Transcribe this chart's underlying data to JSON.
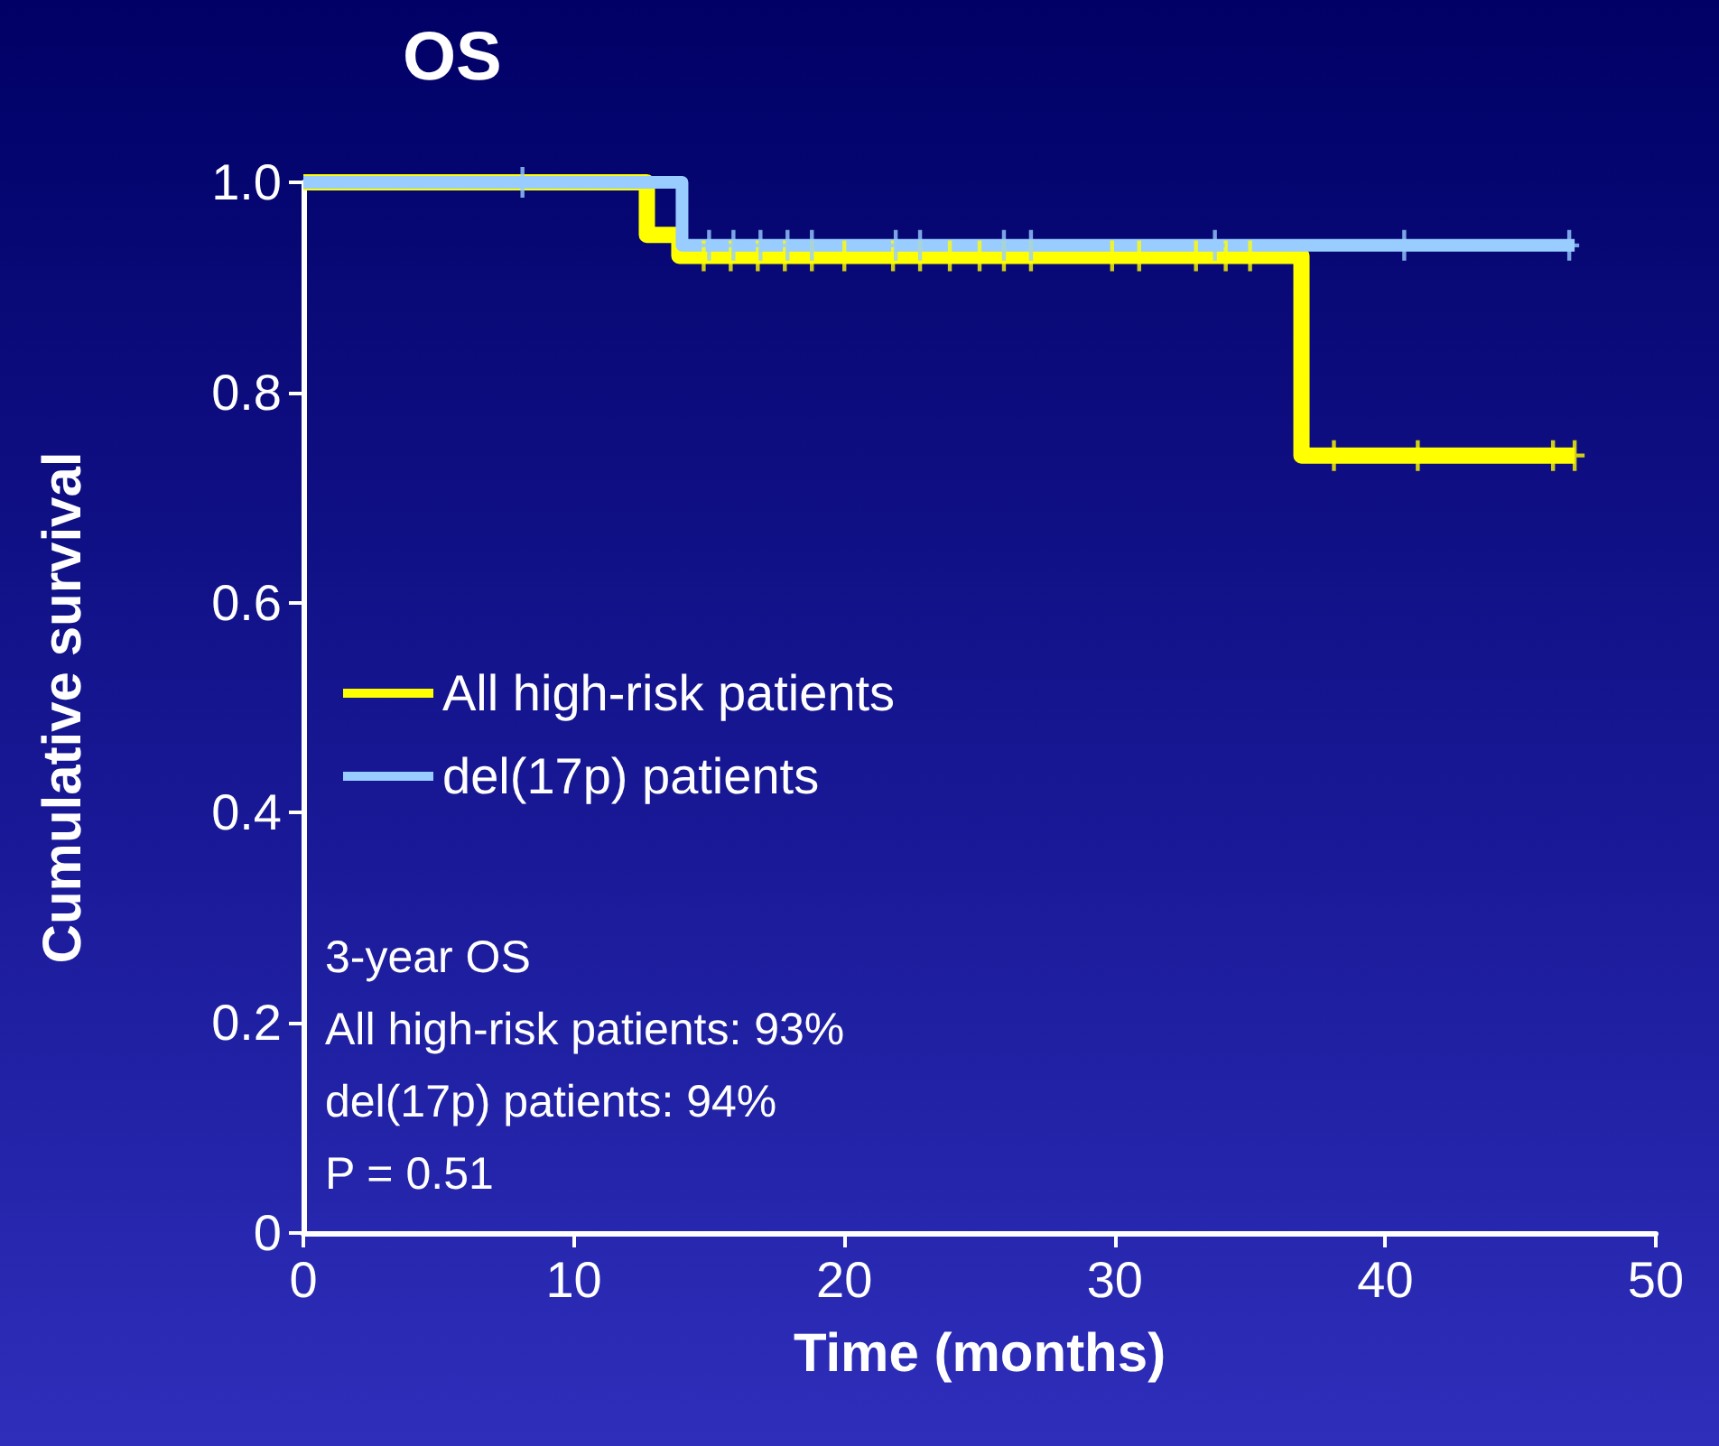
{
  "chart_data": {
    "type": "step",
    "title": "OS",
    "xlabel": "Time (months)",
    "ylabel": "Cumulative survival",
    "xlim": [
      0,
      50
    ],
    "xticks": [
      0,
      10,
      20,
      30,
      40,
      50
    ],
    "ylim": [
      0,
      1
    ],
    "yticks": [
      0,
      0.2,
      0.4,
      0.6,
      0.8,
      {
        "value": 1,
        "label": "1.0"
      }
    ],
    "series": [
      {
        "name": "All high-risk patients",
        "color": "#ffff00",
        "x": [
          0,
          12.7,
          13.9,
          36.9,
          47
        ],
        "values": [
          1,
          0.95,
          0.93,
          0.74,
          0.74
        ]
      },
      {
        "name": "del(17p) patients",
        "color": "#99ccff",
        "x": [
          0,
          14,
          47
        ],
        "values": [
          1,
          0.94,
          0.94
        ]
      },
      {
        "type": "scatter",
        "color": "#ffff00",
        "x": [
          14.8,
          15.8,
          16.8,
          17.8,
          18.8,
          20.0,
          21.8,
          22.8,
          23.9,
          25.0,
          25.9,
          26.9,
          29.9,
          30.9,
          33.0,
          34.1,
          35.0,
          38.1,
          41.2,
          46.2,
          47.0
        ],
        "values": [
          0.93,
          0.93,
          0.93,
          0.93,
          0.93,
          0.93,
          0.93,
          0.93,
          0.93,
          0.93,
          0.93,
          0.93,
          0.93,
          0.93,
          0.93,
          0.93,
          0.93,
          0.74,
          0.74,
          0.74,
          0.74
        ]
      },
      {
        "type": "scatter",
        "color": "#99ccff",
        "x": [
          8.1,
          15.0,
          15.9,
          16.9,
          17.9,
          18.8,
          21.9,
          22.8,
          25.9,
          26.9,
          33.7,
          40.7,
          46.8
        ],
        "values": [
          1,
          0.94,
          0.94,
          0.94,
          0.94,
          0.94,
          0.94,
          0.94,
          0.94,
          0.94,
          0.94,
          0.94,
          0.94
        ]
      }
    ],
    "legend": "left",
    "grid": false,
    "annotations": [
      "3-year OS",
      "All high-risk patients: 93%",
      "del(17p) patients: 94%",
      "P = 0.51"
    ]
  }
}
